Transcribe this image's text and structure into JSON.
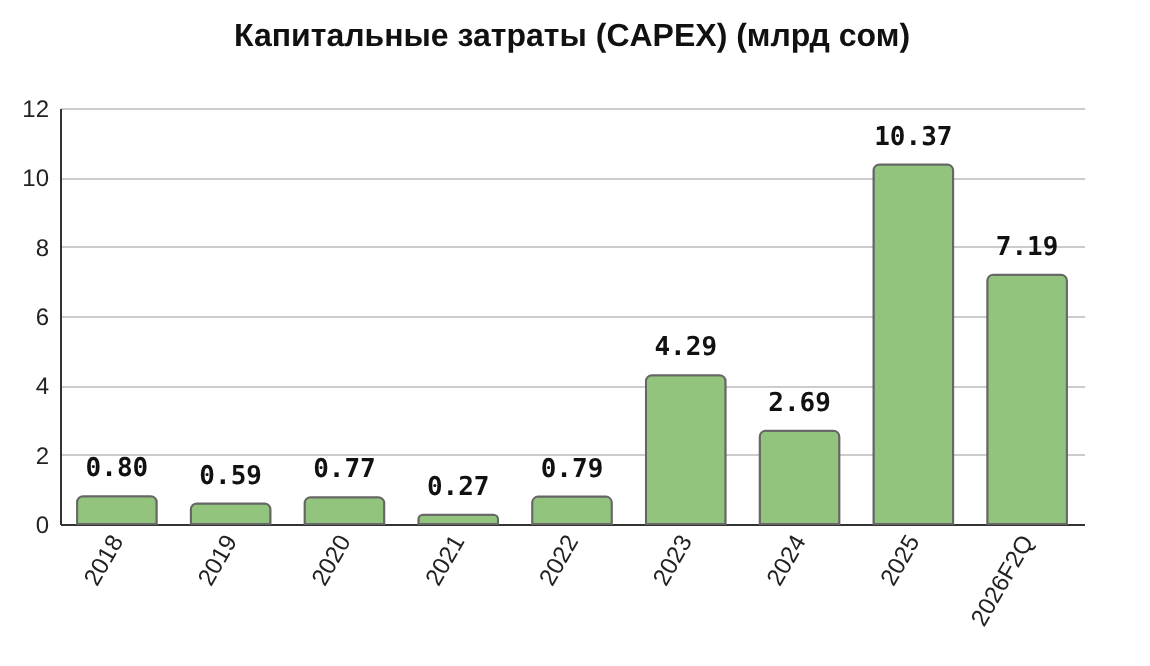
{
  "chart_data": {
    "type": "bar",
    "title": "Капитальные затраты (CAPEX) (млрд сом)",
    "categories": [
      "2018",
      "2019",
      "2020",
      "2021",
      "2022",
      "2023",
      "2024",
      "2025",
      "2026F2Q"
    ],
    "values": [
      0.8,
      0.59,
      0.77,
      0.27,
      0.79,
      4.29,
      2.69,
      10.37,
      7.19
    ],
    "value_labels": [
      "0.80",
      "0.59",
      "0.77",
      "0.27",
      "0.79",
      "4.29",
      "2.69",
      "10.37",
      "7.19"
    ],
    "color": "#93c47d",
    "ylim": [
      0,
      12
    ],
    "yticks": [
      0,
      2,
      4,
      6,
      8,
      10,
      12
    ],
    "grid": "y"
  }
}
